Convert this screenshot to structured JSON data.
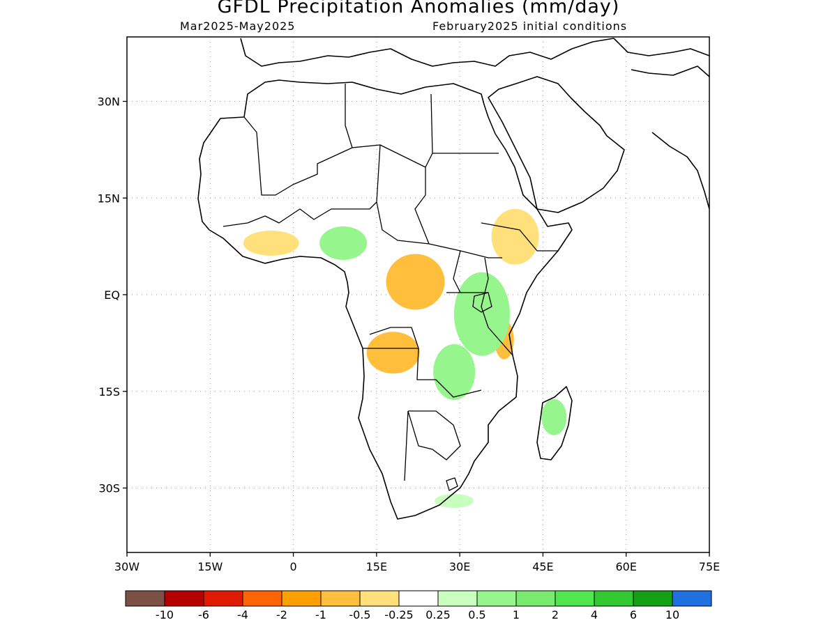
{
  "header": {
    "title": "GFDL Precipitation Anomalies (mm/day)",
    "period": "Mar2025-May2025",
    "init": "February2025 initial conditions"
  },
  "map": {
    "lon_range": [
      -30,
      75
    ],
    "lat_range": [
      -40,
      40
    ],
    "lon_ticks": [
      {
        "value": -30,
        "label": "30W"
      },
      {
        "value": -15,
        "label": "15W"
      },
      {
        "value": 0,
        "label": "0"
      },
      {
        "value": 15,
        "label": "15E"
      },
      {
        "value": 30,
        "label": "30E"
      },
      {
        "value": 45,
        "label": "45E"
      },
      {
        "value": 60,
        "label": "60E"
      },
      {
        "value": 75,
        "label": "75E"
      }
    ],
    "lat_ticks": [
      {
        "value": 30,
        "label": "30N"
      },
      {
        "value": 15,
        "label": "15N"
      },
      {
        "value": 0,
        "label": "EQ"
      },
      {
        "value": -15,
        "label": "15S"
      },
      {
        "value": -30,
        "label": "30S"
      }
    ],
    "grid": "dotted"
  },
  "colorbar": {
    "colors": [
      "#7b5146",
      "#b40000",
      "#e01a00",
      "#ff6400",
      "#ffa000",
      "#ffbe3c",
      "#ffe07a",
      "#ffffff",
      "#c8ffbe",
      "#96f58c",
      "#78eb6e",
      "#50e650",
      "#32c832",
      "#14a014",
      "#2070e0"
    ],
    "labels": [
      "-10",
      "-6",
      "-4",
      "-2",
      "-1",
      "-0.5",
      "-0.25",
      "0.25",
      "0.5",
      "1",
      "2",
      "4",
      "6",
      "10"
    ]
  },
  "anomaly_regions": [
    {
      "name": "ethiopia-dry",
      "level": -0.25,
      "color": "#ffe07a",
      "lon": 40,
      "lat": 9
    },
    {
      "name": "angola-dry",
      "level": -0.5,
      "color": "#ffbe3c",
      "lon": 18,
      "lat": -9
    },
    {
      "name": "central-africa-dry",
      "level": -0.5,
      "color": "#ffbe3c",
      "lon": 22,
      "lat": 2
    },
    {
      "name": "west-africa-dry",
      "level": -0.25,
      "color": "#ffe07a",
      "lon": -4,
      "lat": 8
    },
    {
      "name": "tanzania-dry",
      "level": -0.5,
      "color": "#ffbe3c",
      "lon": 38,
      "lat": -7
    },
    {
      "name": "east-africa-wet",
      "level": 0.5,
      "color": "#96f58c",
      "lon": 34,
      "lat": -3
    },
    {
      "name": "nigeria-wet",
      "level": 0.5,
      "color": "#96f58c",
      "lon": 9,
      "lat": 8
    },
    {
      "name": "zambia-wet",
      "level": 0.5,
      "color": "#96f58c",
      "lon": 29,
      "lat": -12
    },
    {
      "name": "madagascar-wet",
      "level": 0.5,
      "color": "#96f58c",
      "lon": 47,
      "lat": -19
    },
    {
      "name": "south-africa-wet",
      "level": 0.25,
      "color": "#c8ffbe",
      "lon": 29,
      "lat": -32
    }
  ]
}
